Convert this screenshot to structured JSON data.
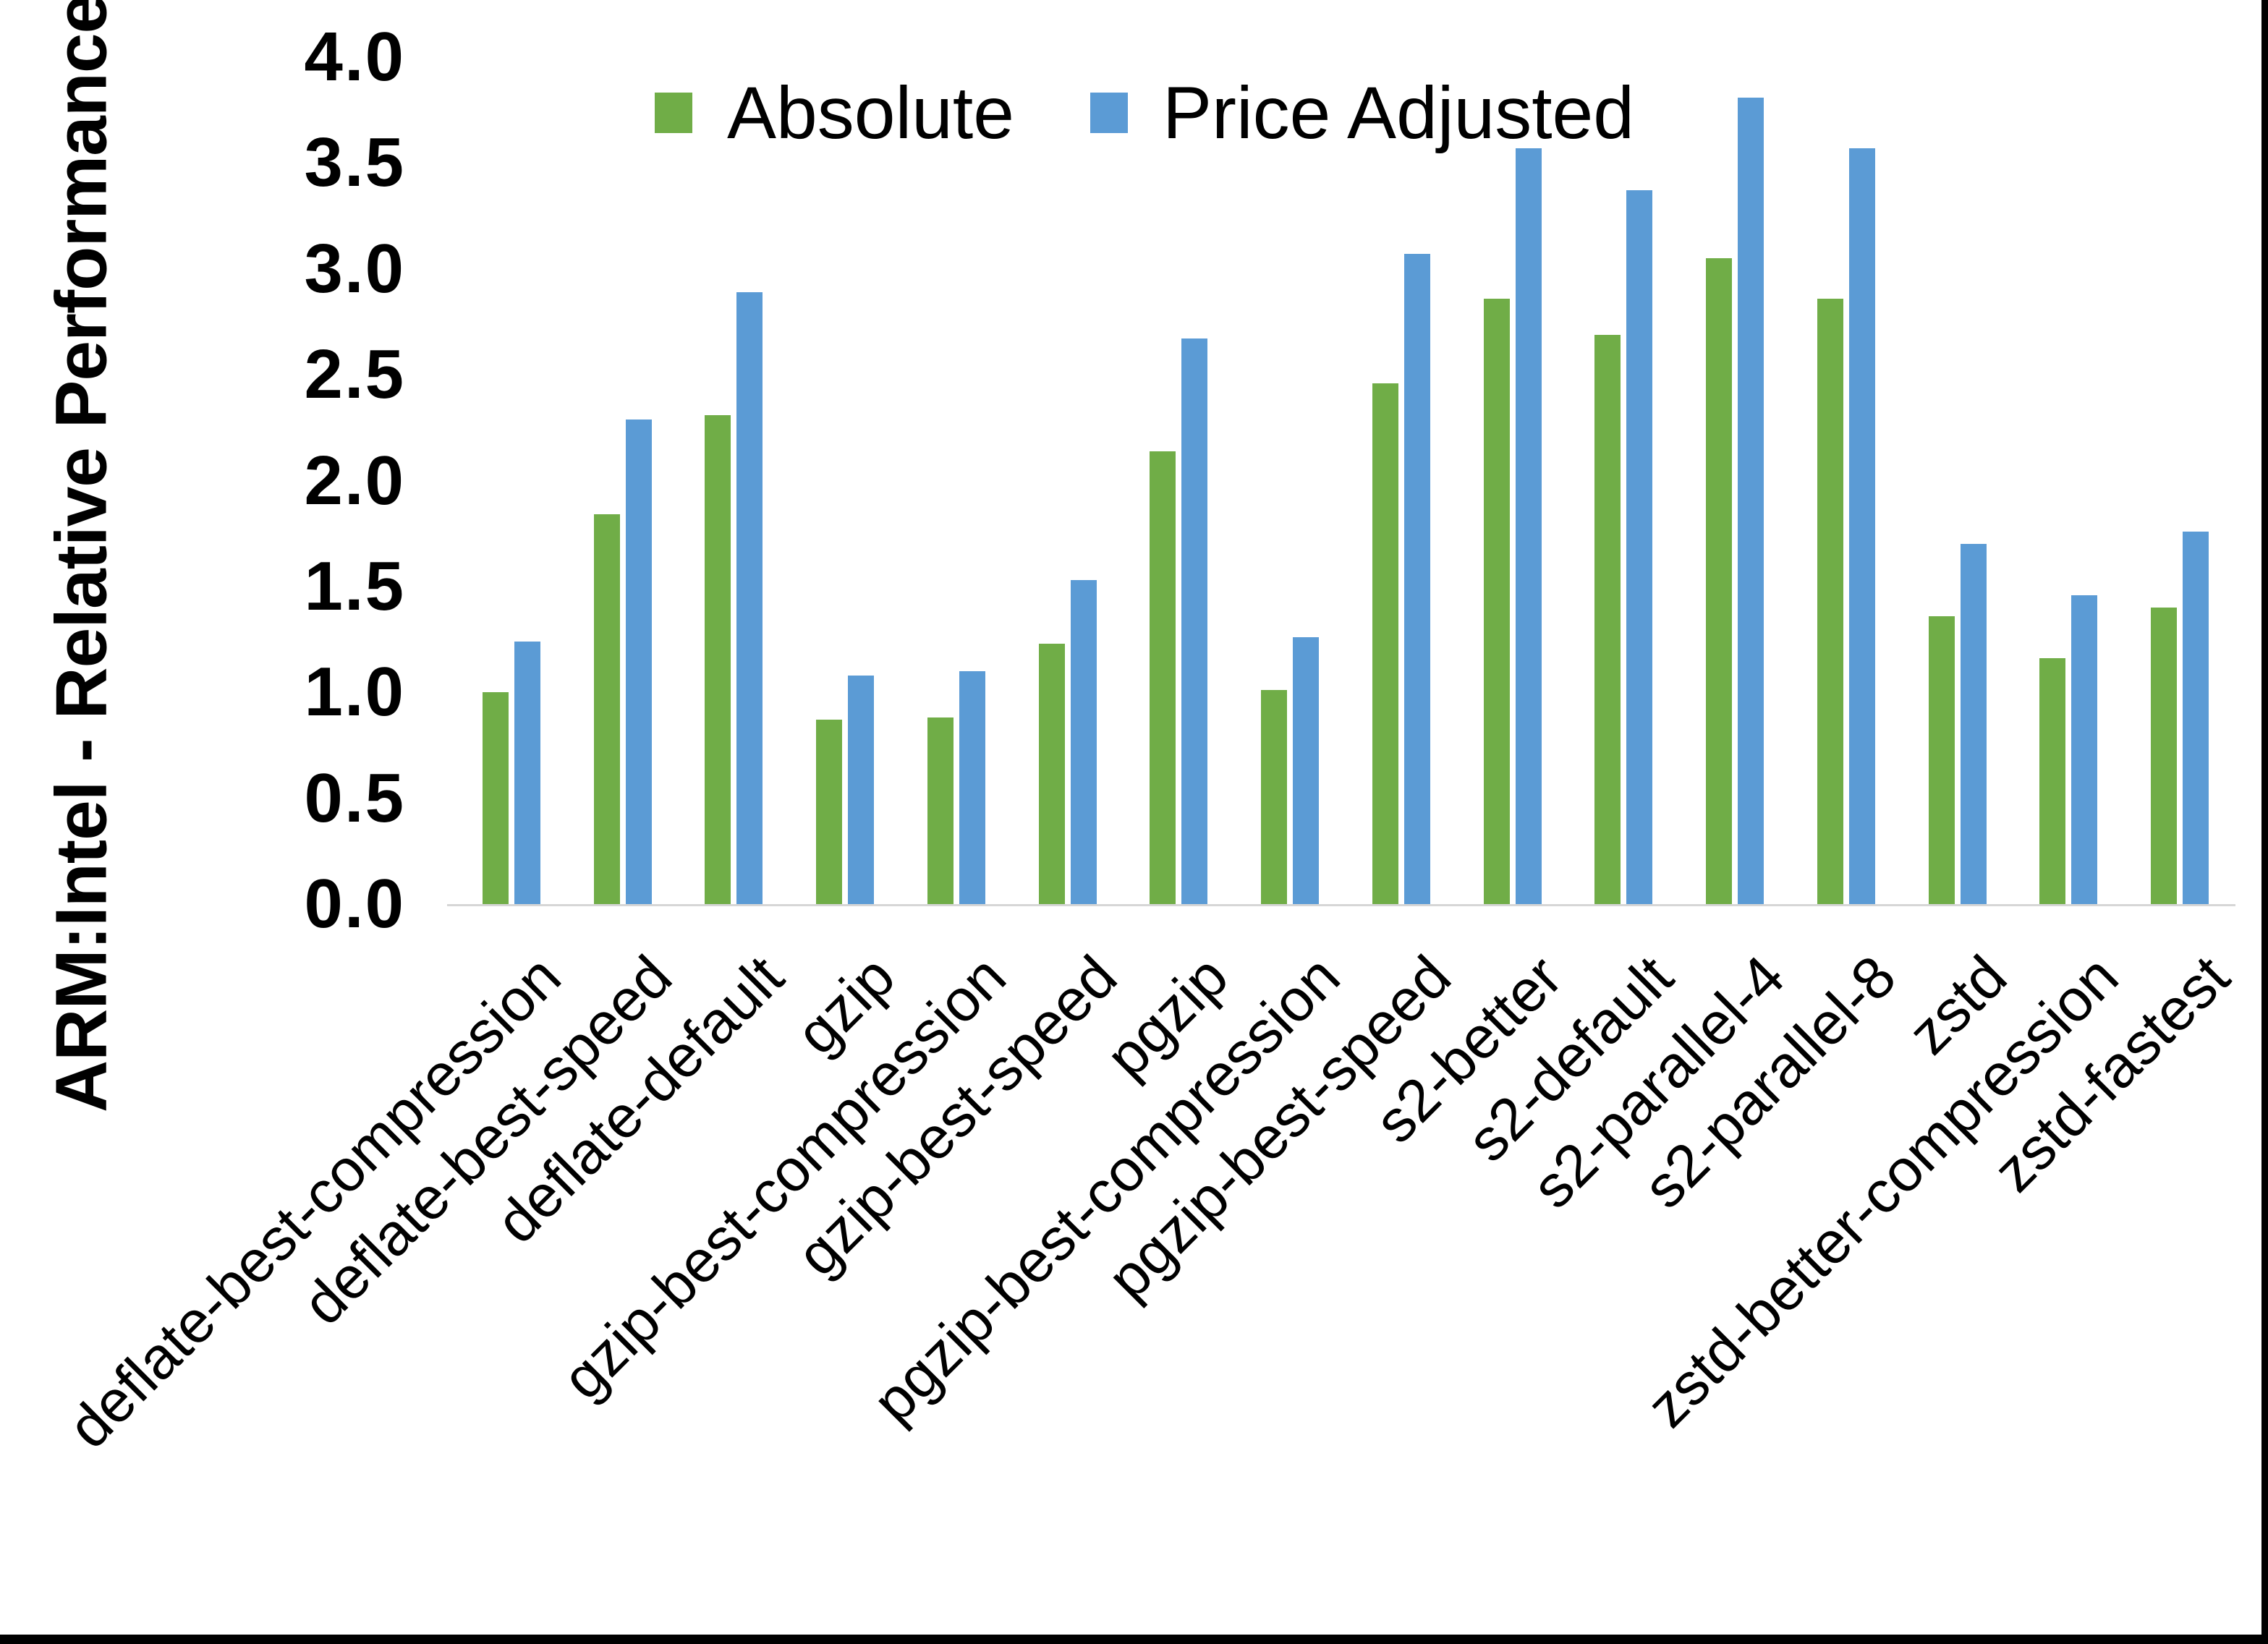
{
  "chart_data": {
    "type": "bar",
    "title": "",
    "xlabel": "",
    "ylabel": "ARM:Intel - Relative Performance",
    "ylim": [
      0.0,
      4.0
    ],
    "ytick_step": 0.5,
    "ytick_labels": [
      "0.0",
      "0.5",
      "1.0",
      "1.5",
      "2.0",
      "2.5",
      "3.0",
      "3.5",
      "4.0"
    ],
    "grid": false,
    "legend_position": "top-center",
    "categories": [
      "deflate-best-compression",
      "deflate-best-speed",
      "deflate-default",
      "gzip",
      "gzip-best-compression",
      "gzip-best-speed",
      "pgzip",
      "pgzip-best-compression",
      "pgzip-best-speed",
      "s2-better",
      "s2-default",
      "s2-parallel-4",
      "s2-parallel-8",
      "zstd",
      "zstd-better-compression",
      "zstd-fastest"
    ],
    "series": [
      {
        "name": "Absolute",
        "color": "#70AD47",
        "values": [
          1.0,
          1.84,
          2.31,
          0.87,
          0.88,
          1.23,
          2.14,
          1.01,
          2.46,
          2.86,
          2.69,
          3.05,
          2.86,
          1.36,
          1.16,
          1.4
        ]
      },
      {
        "name": "Price Adjusted",
        "color": "#5B9BD5",
        "values": [
          1.24,
          2.29,
          2.89,
          1.08,
          1.1,
          1.53,
          2.67,
          1.26,
          3.07,
          3.57,
          3.37,
          3.81,
          3.57,
          1.7,
          1.46,
          1.76
        ]
      }
    ]
  },
  "colors": {
    "background": "#FFFFFF",
    "axis_line": "#D6D6D6",
    "text": "#000000",
    "frame_border": "#000000"
  }
}
